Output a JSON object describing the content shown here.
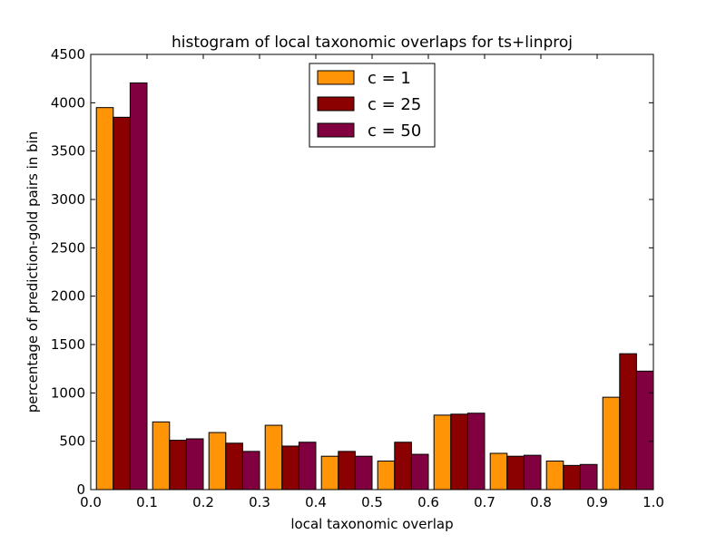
{
  "chart_data": {
    "type": "bar",
    "title": "histogram of local taxonomic overlaps for ts+linproj",
    "xlabel": "local taxonomic overlap",
    "ylabel": "percentage of prediction-gold pairs in bin",
    "xlim": [
      0.0,
      1.0
    ],
    "ylim": [
      0,
      4500
    ],
    "xticks": [
      "0.0",
      "0.1",
      "0.2",
      "0.3",
      "0.4",
      "0.5",
      "0.6",
      "0.7",
      "0.8",
      "0.9",
      "1.0"
    ],
    "yticks": [
      "0",
      "500",
      "1000",
      "1500",
      "2000",
      "2500",
      "3000",
      "3500",
      "4000",
      "4500"
    ],
    "grid": false,
    "legend_position": "top-center",
    "bins": [
      0.0,
      0.1,
      0.2,
      0.3,
      0.4,
      0.5,
      0.6,
      0.7,
      0.8,
      0.9
    ],
    "series": [
      {
        "name": "c = 1",
        "color": "#ff9406",
        "values": [
          3950,
          700,
          590,
          665,
          345,
          295,
          770,
          375,
          295,
          955
        ]
      },
      {
        "name": "c = 25",
        "color": "#8b0000",
        "values": [
          3850,
          510,
          480,
          450,
          395,
          490,
          780,
          345,
          250,
          1405
        ]
      },
      {
        "name": "c = 50",
        "color": "#800040",
        "values": [
          4205,
          525,
          395,
          490,
          345,
          365,
          790,
          355,
          260,
          1225
        ]
      }
    ]
  }
}
